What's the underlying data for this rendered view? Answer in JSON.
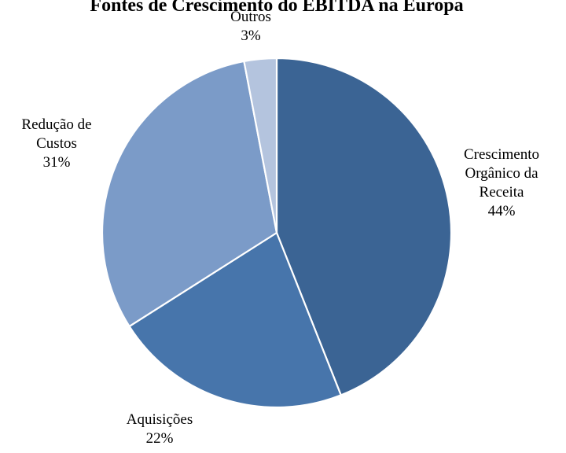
{
  "chart_data": {
    "type": "pie",
    "title": "Fontes de Crescimento do EBITDA na Europa",
    "slices": [
      {
        "label_lines": [
          "Crescimento",
          "Orgânico da",
          "Receita"
        ],
        "value": 44,
        "value_label": "44%",
        "color": "#3b6494"
      },
      {
        "label_lines": [
          "Aquisições"
        ],
        "value": 22,
        "value_label": "22%",
        "color": "#4775ab"
      },
      {
        "label_lines": [
          "Redução de",
          "Custos"
        ],
        "value": 31,
        "value_label": "31%",
        "color": "#7b9bc8"
      },
      {
        "label_lines": [
          "Outros"
        ],
        "value": 3,
        "value_label": "3%",
        "color": "#b4c4de"
      }
    ],
    "start_angle": "12 o'clock",
    "direction": "clockwise",
    "legend": "none",
    "labels": "outside"
  }
}
